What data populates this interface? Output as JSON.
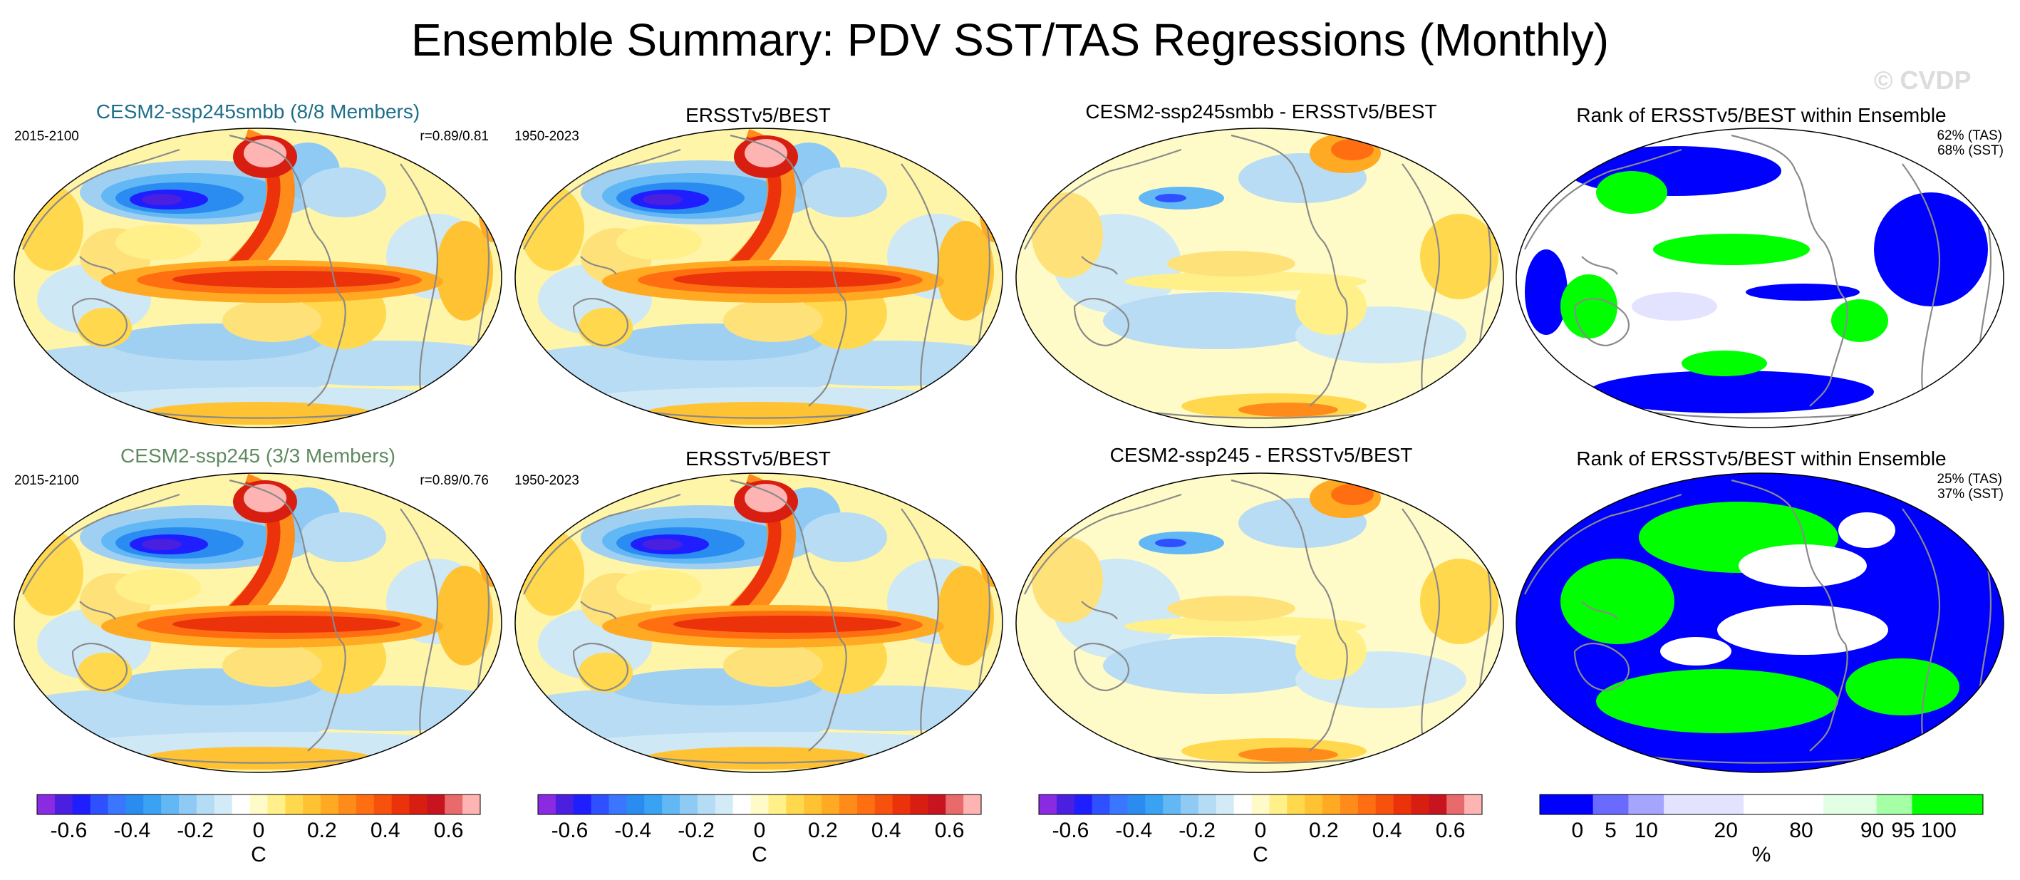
{
  "title": "Ensemble Summary: PDV SST/TAS Regressions (Monthly)",
  "watermark": "© CVDP",
  "rows": [
    {
      "ensemble": {
        "title": "CESM2-ssp245smbb (8/8 Members)",
        "title_color": "#1d6f8a",
        "years": "2015-2100",
        "corr": "r=0.89/0.81"
      },
      "obs": {
        "title": "ERSSTv5/BEST",
        "years": "1950-2023"
      },
      "diff": {
        "title": "CESM2-ssp245smbb - ERSSTv5/BEST"
      },
      "rank": {
        "title": "Rank of ERSSTv5/BEST within Ensemble",
        "tas": "62% (TAS)",
        "sst": "68% (SST)"
      }
    },
    {
      "ensemble": {
        "title": "CESM2-ssp245 (3/3 Members)",
        "title_color": "#5f8a5f",
        "years": "2015-2100",
        "corr": "r=0.89/0.76"
      },
      "obs": {
        "title": "ERSSTv5/BEST",
        "years": "1950-2023"
      },
      "diff": {
        "title": "CESM2-ssp245 - ERSSTv5/BEST"
      },
      "rank": {
        "title": "Rank of ERSSTv5/BEST within Ensemble",
        "tas": "25% (TAS)",
        "sst": "37% (SST)"
      }
    }
  ],
  "chart_data": {
    "type": "heatmap",
    "title": "Ensemble Summary: PDV SST/TAS Regressions (Monthly)",
    "panels": [
      {
        "row": 1,
        "col": 1,
        "title": "CESM2-ssp245smbb (8/8 Members)",
        "period": "2015-2100",
        "annotation": "r=0.89/0.81",
        "field": "regression"
      },
      {
        "row": 1,
        "col": 2,
        "title": "ERSSTv5/BEST",
        "period": "1950-2023",
        "field": "regression"
      },
      {
        "row": 1,
        "col": 3,
        "title": "CESM2-ssp245smbb - ERSSTv5/BEST",
        "field": "difference"
      },
      {
        "row": 1,
        "col": 4,
        "title": "Rank of ERSSTv5/BEST within Ensemble",
        "annotations": [
          "62% (TAS)",
          "68% (SST)"
        ],
        "field": "rank"
      },
      {
        "row": 2,
        "col": 1,
        "title": "CESM2-ssp245 (3/3 Members)",
        "period": "2015-2100",
        "annotation": "r=0.89/0.76",
        "field": "regression"
      },
      {
        "row": 2,
        "col": 2,
        "title": "ERSSTv5/BEST",
        "period": "1950-2023",
        "field": "regression"
      },
      {
        "row": 2,
        "col": 3,
        "title": "CESM2-ssp245 - ERSSTv5/BEST",
        "field": "difference"
      },
      {
        "row": 2,
        "col": 4,
        "title": "Rank of ERSSTv5/BEST within Ensemble",
        "annotations": [
          "25% (TAS)",
          "37% (SST)"
        ],
        "field": "rank"
      }
    ],
    "regression_colorbar": {
      "unit": "C",
      "ticks": [
        "-0.6",
        "-0.4",
        "-0.2",
        "0",
        "0.2",
        "0.4",
        "0.6"
      ],
      "tick_values": [
        -0.6,
        -0.4,
        -0.2,
        0,
        0.2,
        0.4,
        0.6
      ],
      "range": [
        -0.7,
        0.7
      ],
      "colors": [
        "#8a2be2",
        "#4b1fe0",
        "#1e1eff",
        "#2f50ff",
        "#3a76ff",
        "#2a8cf0",
        "#3aa2f2",
        "#62b7f5",
        "#8fcaf5",
        "#b5dcf5",
        "#d3ebf7",
        "#ffffff",
        "#fffbc8",
        "#fff08a",
        "#ffd84d",
        "#ffc233",
        "#ffaa22",
        "#ff8c1a",
        "#ff6f12",
        "#f7520d",
        "#eb320a",
        "#d81e10",
        "#c8141e",
        "#e86a6a",
        "#ffb4b4"
      ]
    },
    "rank_colorbar": {
      "unit": "%",
      "ticks": [
        "0",
        "5",
        "10",
        "20",
        "80",
        "90",
        "95",
        "100"
      ],
      "tick_values": [
        0,
        5,
        10,
        20,
        80,
        90,
        95,
        100
      ],
      "colors": [
        "#0000ff",
        "#6a6aff",
        "#a5a5ff",
        "#e3e3ff",
        "#ffffff",
        "#e3ffe3",
        "#a5ffa5",
        "#00ff00"
      ]
    }
  }
}
